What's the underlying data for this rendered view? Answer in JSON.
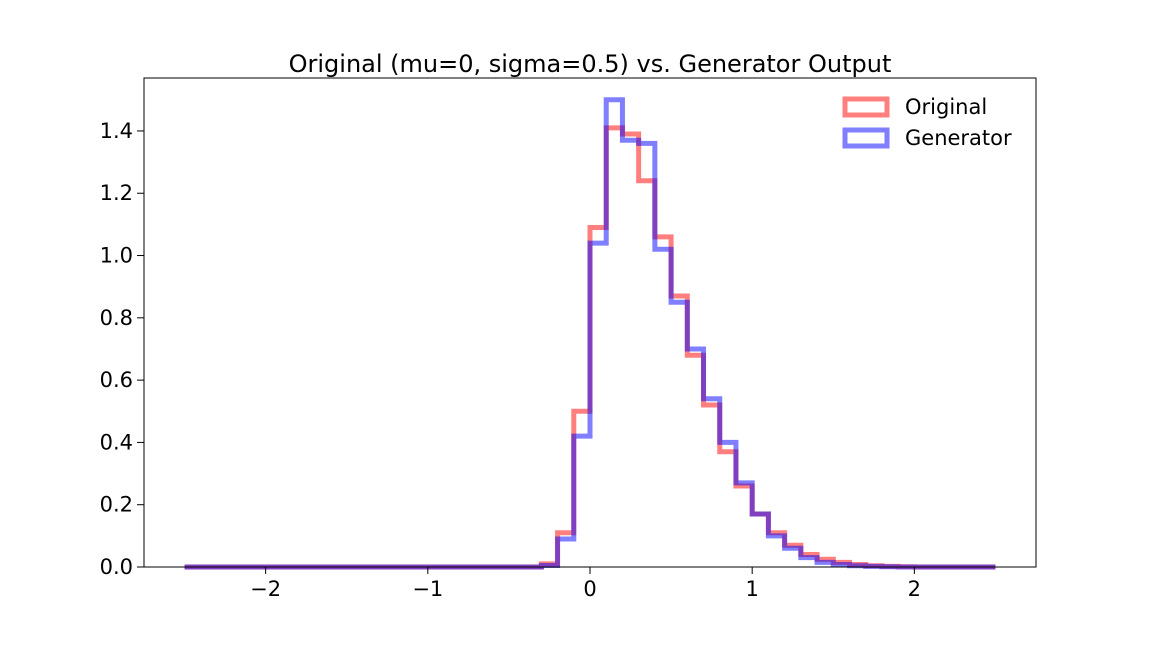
{
  "chart_data": {
    "type": "histogram",
    "title": "Original (mu=0, sigma=0.5) vs. Generator Output",
    "xlabel": "",
    "ylabel": "",
    "xlim": [
      -2.75,
      2.75
    ],
    "ylim": [
      0,
      1.57
    ],
    "grid": false,
    "legend_position": "top-right",
    "x_ticks": [
      -2,
      -1,
      0,
      1,
      2
    ],
    "x_tick_labels": [
      "−2",
      "−1",
      "0",
      "1",
      "2"
    ],
    "y_ticks": [
      0,
      0.2,
      0.4,
      0.6,
      0.8,
      1.0,
      1.2,
      1.4
    ],
    "y_tick_labels": [
      "0.0",
      "0.2",
      "0.4",
      "0.6",
      "0.8",
      "1.0",
      "1.2",
      "1.4"
    ],
    "bin_edges": [
      -2.5,
      -2.4,
      -2.3,
      -2.2,
      -2.1,
      -2.0,
      -1.9,
      -1.8,
      -1.7,
      -1.6,
      -1.5,
      -1.4,
      -1.3,
      -1.2,
      -1.1,
      -1.0,
      -0.9,
      -0.8,
      -0.7,
      -0.6,
      -0.5,
      -0.4,
      -0.3,
      -0.2,
      -0.1,
      0.0,
      0.1,
      0.2,
      0.3,
      0.4,
      0.5,
      0.6,
      0.7,
      0.8,
      0.9,
      1.0,
      1.1,
      1.2,
      1.3,
      1.4,
      1.5,
      1.6,
      1.7,
      1.8,
      1.9,
      2.0,
      2.1,
      2.2,
      2.3,
      2.4,
      2.5
    ],
    "series": [
      {
        "name": "Original",
        "color": "#ff0000",
        "opacity": 0.5,
        "values": [
          0,
          0,
          0,
          0,
          0,
          0,
          0,
          0,
          0,
          0,
          0,
          0,
          0,
          0,
          0,
          0,
          0,
          0,
          0,
          0,
          0,
          0,
          0.01,
          0.11,
          0.5,
          1.09,
          1.41,
          1.39,
          1.24,
          1.06,
          0.87,
          0.68,
          0.52,
          0.37,
          0.26,
          0.17,
          0.11,
          0.07,
          0.04,
          0.025,
          0.015,
          0.008,
          0.004,
          0.002,
          0.001,
          0,
          0,
          0,
          0,
          0
        ]
      },
      {
        "name": "Generator",
        "color": "#0000ff",
        "opacity": 0.5,
        "values": [
          0,
          0,
          0,
          0,
          0,
          0,
          0,
          0,
          0,
          0,
          0,
          0,
          0,
          0,
          0,
          0,
          0,
          0,
          0,
          0,
          0,
          0,
          0.005,
          0.09,
          0.42,
          1.04,
          1.5,
          1.37,
          1.36,
          1.02,
          0.85,
          0.7,
          0.54,
          0.4,
          0.27,
          0.17,
          0.1,
          0.06,
          0.03,
          0.015,
          0.008,
          0.004,
          0.002,
          0.001,
          0,
          0,
          0,
          0,
          0,
          0
        ]
      }
    ]
  }
}
